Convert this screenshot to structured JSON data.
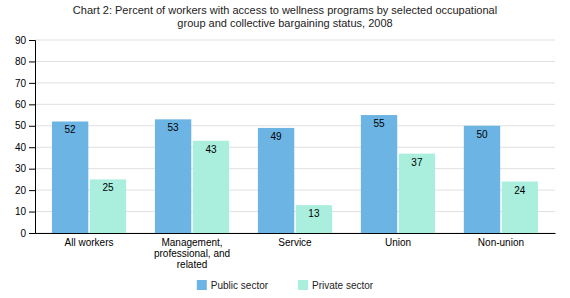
{
  "chart_data": {
    "type": "bar",
    "title": "Chart 2: Percent of workers with access to wellness programs by selected occupational\ngroup and collective bargaining status, 2008",
    "categories": [
      "All workers",
      "Management,\nprofessional, and\nrelated",
      "Service",
      "Union",
      "Non-union"
    ],
    "series": [
      {
        "name": "Public sector",
        "color": "#6CB4E4",
        "values": [
          52,
          53,
          49,
          55,
          50
        ]
      },
      {
        "name": "Private sector",
        "color": "#AAEEDD",
        "values": [
          25,
          43,
          13,
          37,
          24
        ]
      }
    ],
    "ylim": [
      0,
      90
    ],
    "yticks": [
      0,
      10,
      20,
      30,
      40,
      50,
      60,
      70,
      80,
      90
    ],
    "grid": true,
    "data_labels": true,
    "legend": "bottom"
  }
}
